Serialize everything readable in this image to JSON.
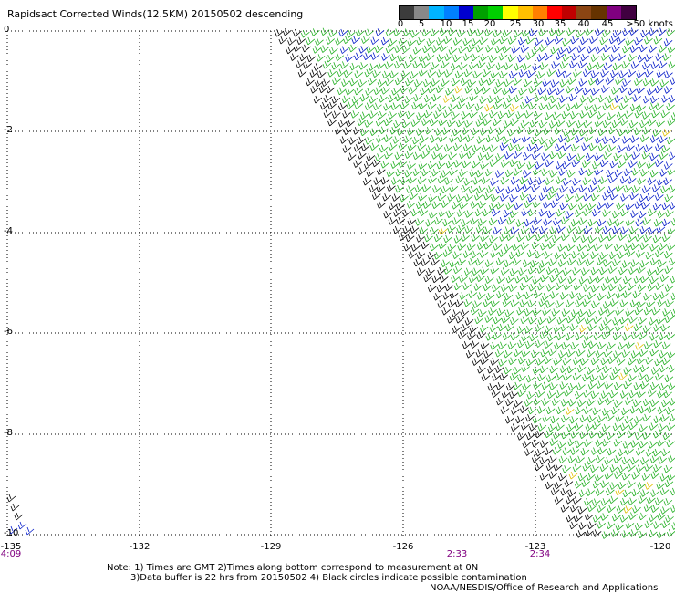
{
  "title": "Rapidsact Corrected Winds(12.5KM) 20150502 descending",
  "colorbar": {
    "colors": [
      "#3c3c3c",
      "#888888",
      "#00b4ff",
      "#0080ff",
      "#0000d0",
      "#00a000",
      "#00d000",
      "#ffff00",
      "#ffc000",
      "#ff8000",
      "#ff0000",
      "#c00000",
      "#8b4513",
      "#663300",
      "#800080",
      "#400040"
    ],
    "labels": [
      "0",
      "5",
      "10",
      "15",
      "20",
      "25",
      "30",
      "35",
      "40",
      "45",
      ">50 knots"
    ]
  },
  "axes": {
    "y_labels": [
      "0",
      "-2",
      "-4",
      "-6",
      "-8",
      "-10"
    ],
    "x_labels": [
      "-135",
      "-132",
      "-129",
      "-126",
      "-123",
      "-120"
    ]
  },
  "pass_times": [
    "4:09",
    "2:33",
    "2:34"
  ],
  "notes": {
    "line1": "Note: 1) Times are GMT 2)Times along bottom correspond to measurement at 0N",
    "line2": "3)Data buffer is 22 hrs from 20150502 4) Black circles indicate possible contamination",
    "credit": "NOAA/NESDIS/Office of Research and Applications"
  }
}
